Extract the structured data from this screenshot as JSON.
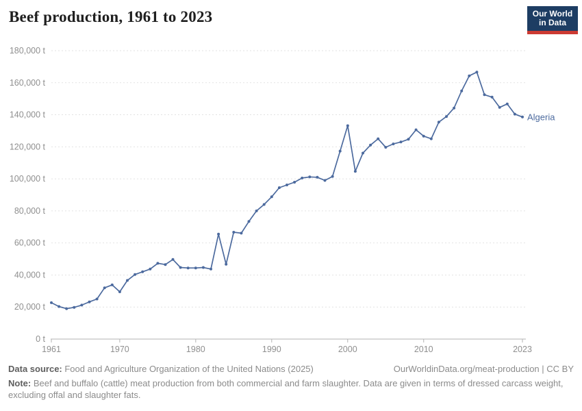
{
  "header": {
    "title": "Beef production, 1961 to 2023",
    "logo_line1": "Our World",
    "logo_line2": "in Data"
  },
  "colors": {
    "line": "#4c6a9e",
    "entity_label": "#4c6a9e",
    "grid": "#e2e2e2",
    "axis": "#b3b3b3",
    "tick_text": "#8f8f8f",
    "logo_bg": "#1d3d63",
    "logo_stripe": "#cc3b33"
  },
  "chart_data": {
    "type": "line",
    "title": "Beef production, 1961 to 2023",
    "unit": "t",
    "entity": "Algeria",
    "legend_position": "end-of-line label",
    "grid": "horizontal dashed",
    "ylim": [
      0,
      180000
    ],
    "xlim": [
      1961,
      2023
    ],
    "yticks": [
      {
        "v": 0,
        "label": "0 t"
      },
      {
        "v": 20000,
        "label": "20,000 t"
      },
      {
        "v": 40000,
        "label": "40,000 t"
      },
      {
        "v": 60000,
        "label": "60,000 t"
      },
      {
        "v": 80000,
        "label": "80,000 t"
      },
      {
        "v": 100000,
        "label": "100,000 t"
      },
      {
        "v": 120000,
        "label": "120,000 t"
      },
      {
        "v": 140000,
        "label": "140,000 t"
      },
      {
        "v": 160000,
        "label": "160,000 t"
      },
      {
        "v": 180000,
        "label": "180,000 t"
      }
    ],
    "xticks": [
      {
        "v": 1961,
        "label": "1961"
      },
      {
        "v": 1970,
        "label": "1970"
      },
      {
        "v": 1980,
        "label": "1980"
      },
      {
        "v": 1990,
        "label": "1990"
      },
      {
        "v": 2000,
        "label": "2000"
      },
      {
        "v": 2010,
        "label": "2010"
      },
      {
        "v": 2023,
        "label": "2023"
      }
    ],
    "x": [
      1961,
      1962,
      1963,
      1964,
      1965,
      1966,
      1967,
      1968,
      1969,
      1970,
      1971,
      1972,
      1973,
      1974,
      1975,
      1976,
      1977,
      1978,
      1979,
      1980,
      1981,
      1982,
      1983,
      1984,
      1985,
      1986,
      1987,
      1988,
      1989,
      1990,
      1991,
      1992,
      1993,
      1994,
      1995,
      1996,
      1997,
      1998,
      1999,
      2000,
      2001,
      2002,
      2003,
      2004,
      2005,
      2006,
      2007,
      2008,
      2009,
      2010,
      2011,
      2012,
      2013,
      2014,
      2015,
      2016,
      2017,
      2018,
      2019,
      2020,
      2021,
      2022,
      2023
    ],
    "series": [
      {
        "name": "Algeria",
        "color": "#4c6a9e",
        "values": [
          22700,
          20300,
          19000,
          19800,
          21200,
          23200,
          25000,
          32000,
          33800,
          29500,
          36600,
          40300,
          42000,
          43700,
          47300,
          46500,
          49700,
          44700,
          44400,
          44400,
          44700,
          43700,
          65500,
          46700,
          66700,
          66100,
          73400,
          80000,
          84000,
          88800,
          94500,
          96200,
          97900,
          100500,
          101200,
          101000,
          99000,
          101500,
          117300,
          133200,
          104700,
          116100,
          121100,
          125000,
          119700,
          121800,
          123000,
          124700,
          130600,
          126700,
          125000,
          135400,
          138900,
          144200,
          154900,
          164300,
          166600,
          152500,
          151000,
          144600,
          146800,
          140400,
          138600
        ]
      }
    ]
  },
  "footer": {
    "data_source_label": "Data source:",
    "data_source": " Food and Agriculture Organization of the United Nations (2025)",
    "link": "OurWorldinData.org/meat-production | CC BY",
    "note_label": "Note:",
    "note": " Beef and buffalo (cattle) meat production from both commercial and farm slaughter. Data are given in terms of dressed carcass weight, excluding offal and slaughter fats."
  }
}
